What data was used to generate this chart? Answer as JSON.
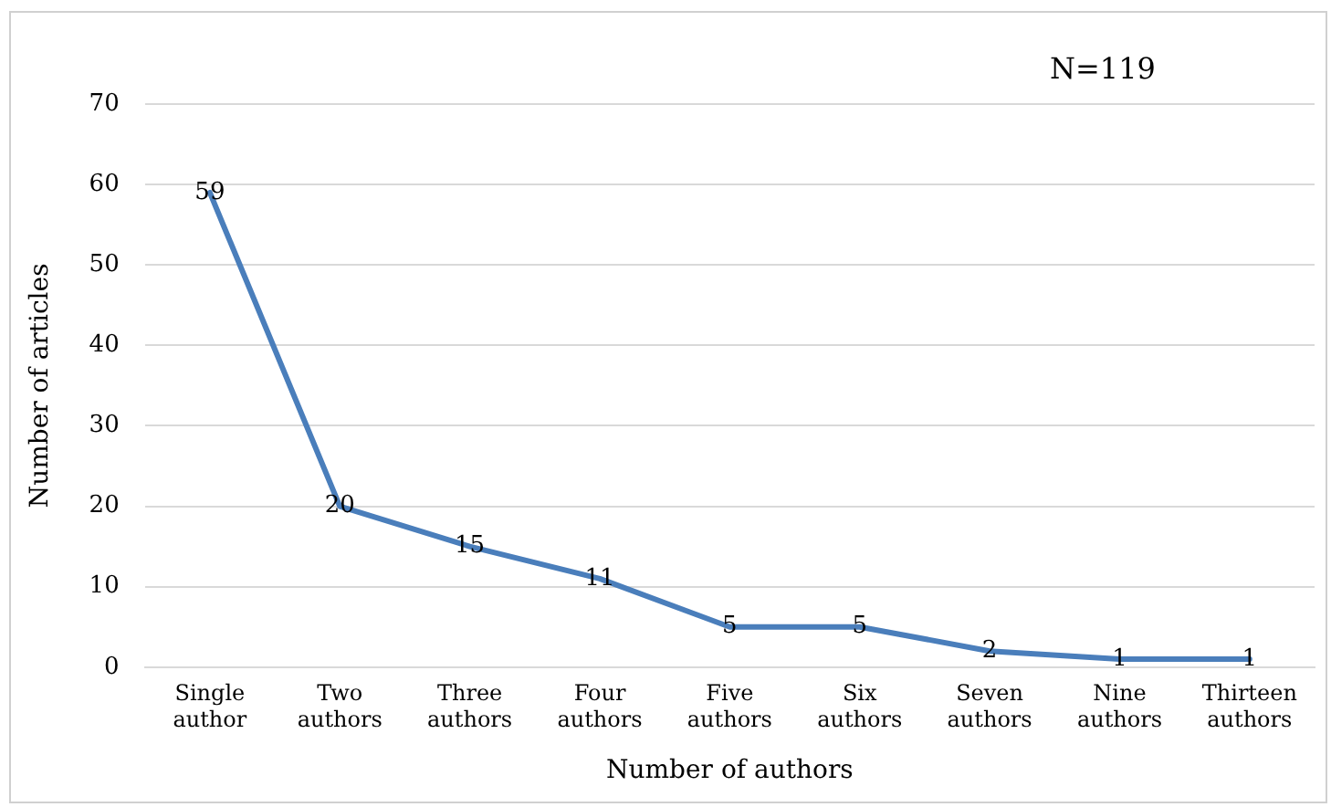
{
  "chart_data": {
    "type": "line",
    "xlabel": "Number of authors",
    "ylabel": "Number of articles",
    "annotations": [
      "N=119"
    ],
    "categories": [
      "Single author",
      "Two authors",
      "Three authors",
      "Four authors",
      "Five authors",
      "Six authors",
      "Seven authors",
      "Nine authors",
      "Thirteen authors"
    ],
    "series": [
      {
        "color": "#4a7ebb",
        "values": [
          59,
          20,
          15,
          11,
          5,
          5,
          2,
          1,
          1
        ]
      }
    ],
    "ylim": [
      0,
      70
    ],
    "yticks": [
      0,
      10,
      20,
      30,
      40,
      50,
      60,
      70
    ],
    "grid": "y",
    "legend": false,
    "marker": "none",
    "data_labels": true
  }
}
